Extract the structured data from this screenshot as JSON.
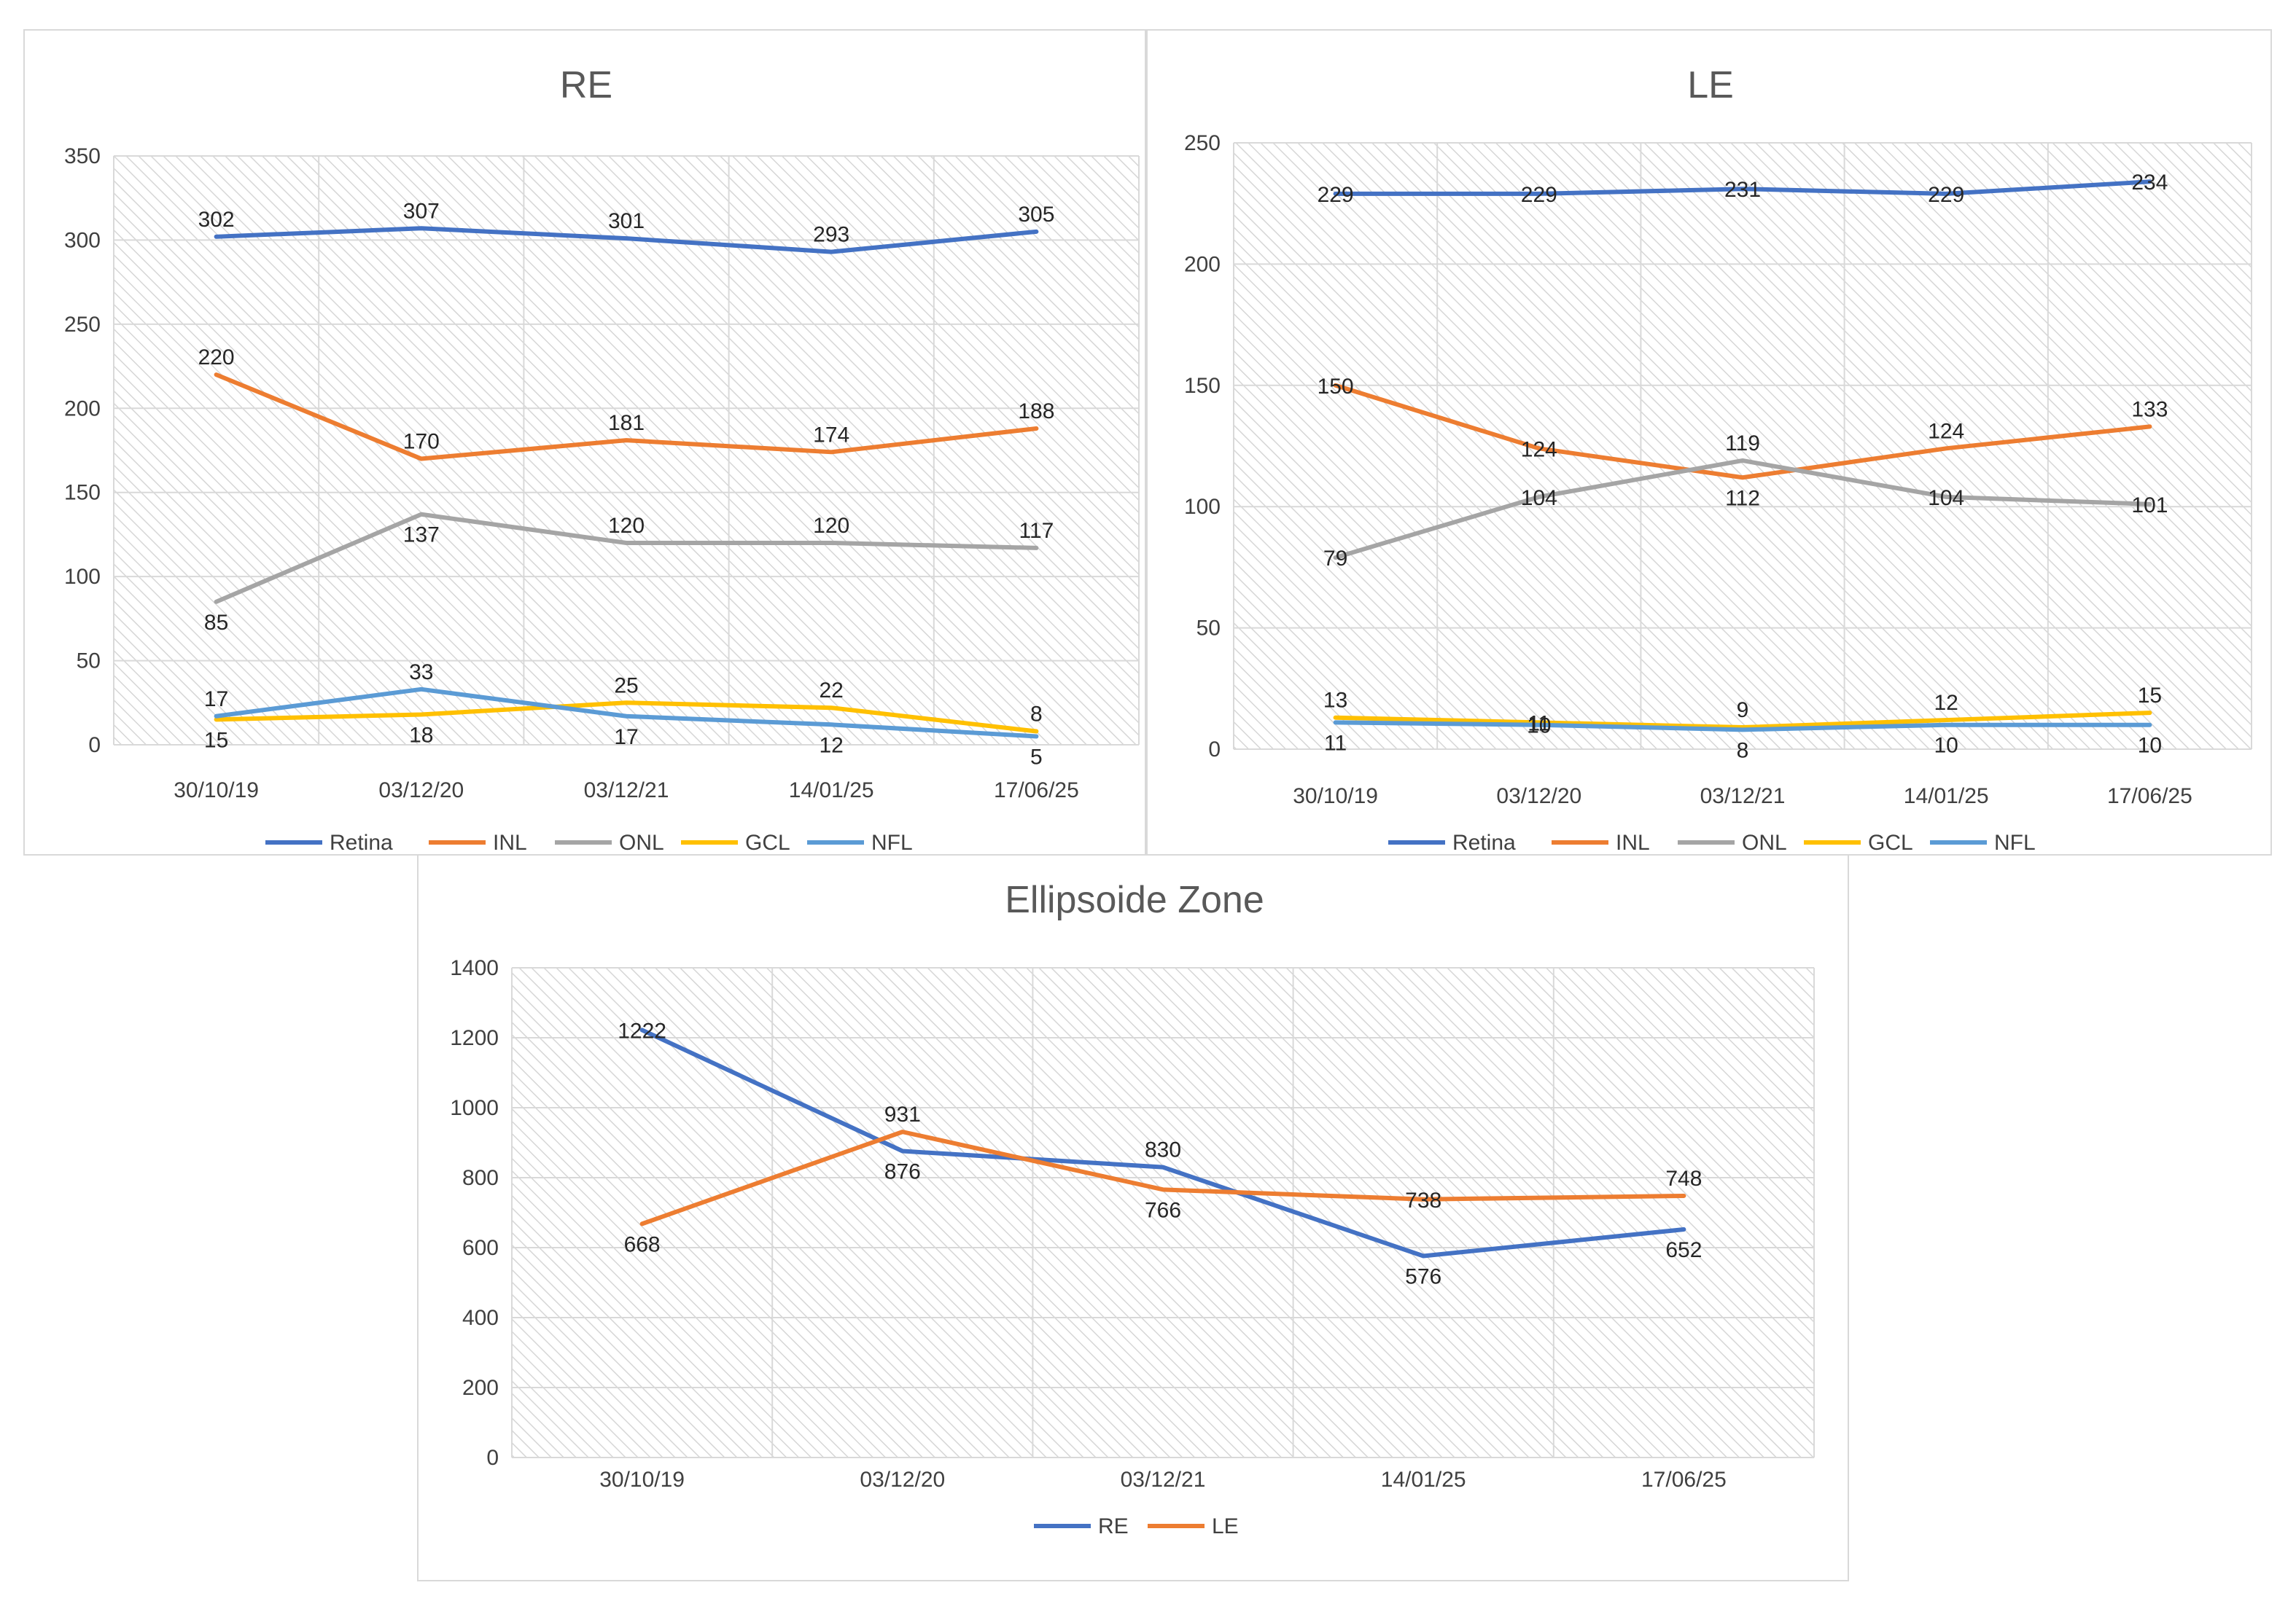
{
  "chart_data": [
    {
      "type": "line",
      "title": "RE",
      "categories": [
        "30/10/19",
        "03/12/20",
        "03/12/21",
        "14/01/25",
        "17/06/25"
      ],
      "ylim": [
        0,
        350
      ],
      "yticks": [
        0,
        50,
        100,
        150,
        200,
        250,
        300,
        350
      ],
      "legend": "bottom",
      "grid": true,
      "series": [
        {
          "name": "Retina",
          "color": "#4472C4",
          "values": [
            302,
            307,
            301,
            293,
            305
          ],
          "label_pos": [
            "above",
            "above",
            "above",
            "above",
            "above"
          ]
        },
        {
          "name": "INL",
          "color": "#ED7D31",
          "values": [
            220,
            170,
            181,
            174,
            188
          ],
          "label_pos": [
            "above",
            "above",
            "above",
            "above",
            "above"
          ]
        },
        {
          "name": "ONL",
          "color": "#A5A5A5",
          "values": [
            85,
            137,
            120,
            120,
            117
          ],
          "label_pos": [
            "below",
            "below",
            "above",
            "above",
            "above"
          ]
        },
        {
          "name": "GCL",
          "color": "#FFC000",
          "values": [
            15,
            18,
            25,
            22,
            8
          ],
          "label_pos": [
            "below",
            "below",
            "above",
            "above",
            "above"
          ]
        },
        {
          "name": "NFL",
          "color": "#5B9BD5",
          "values": [
            17,
            33,
            17,
            12,
            5
          ],
          "label_pos": [
            "above",
            "above",
            "below",
            "below",
            "below"
          ]
        }
      ]
    },
    {
      "type": "line",
      "title": "LE",
      "categories": [
        "30/10/19",
        "03/12/20",
        "03/12/21",
        "14/01/25",
        "17/06/25"
      ],
      "ylim": [
        0,
        250
      ],
      "yticks": [
        0,
        50,
        100,
        150,
        200,
        250
      ],
      "legend": "bottom",
      "grid": true,
      "series": [
        {
          "name": "Retina",
          "color": "#4472C4",
          "values": [
            229,
            229,
            231,
            229,
            234
          ],
          "label_pos": [
            "center",
            "center",
            "center",
            "center",
            "center"
          ]
        },
        {
          "name": "INL",
          "color": "#ED7D31",
          "values": [
            150,
            124,
            112,
            124,
            133
          ],
          "label_pos": [
            "center",
            "center",
            "below",
            "above",
            "above"
          ]
        },
        {
          "name": "ONL",
          "color": "#A5A5A5",
          "values": [
            79,
            104,
            119,
            104,
            101
          ],
          "label_pos": [
            "center",
            "center",
            "above",
            "center",
            "center"
          ]
        },
        {
          "name": "GCL",
          "color": "#FFC000",
          "values": [
            13,
            11,
            9,
            12,
            15
          ],
          "label_pos": [
            "above",
            "none",
            "above",
            "above",
            "above"
          ]
        },
        {
          "name": "NFL",
          "color": "#5B9BD5",
          "values": [
            11,
            10,
            8,
            10,
            10
          ],
          "label_pos": [
            "below",
            "none",
            "below",
            "below",
            "below"
          ]
        }
      ]
    },
    {
      "type": "line",
      "title": "Ellipsoide Zone",
      "categories": [
        "30/10/19",
        "03/12/20",
        "03/12/21",
        "14/01/25",
        "17/06/25"
      ],
      "ylim": [
        0,
        1400
      ],
      "yticks": [
        0,
        200,
        400,
        600,
        800,
        1000,
        1200,
        1400
      ],
      "legend": "bottom",
      "grid": true,
      "series": [
        {
          "name": "RE",
          "color": "#4472C4",
          "values": [
            1222,
            876,
            830,
            576,
            652
          ],
          "label_pos": [
            "center",
            "below",
            "above",
            "below",
            "below"
          ]
        },
        {
          "name": "LE",
          "color": "#ED7D31",
          "values": [
            668,
            931,
            766,
            738,
            748
          ],
          "label_pos": [
            "below",
            "above",
            "below",
            "center",
            "above"
          ]
        }
      ]
    }
  ]
}
